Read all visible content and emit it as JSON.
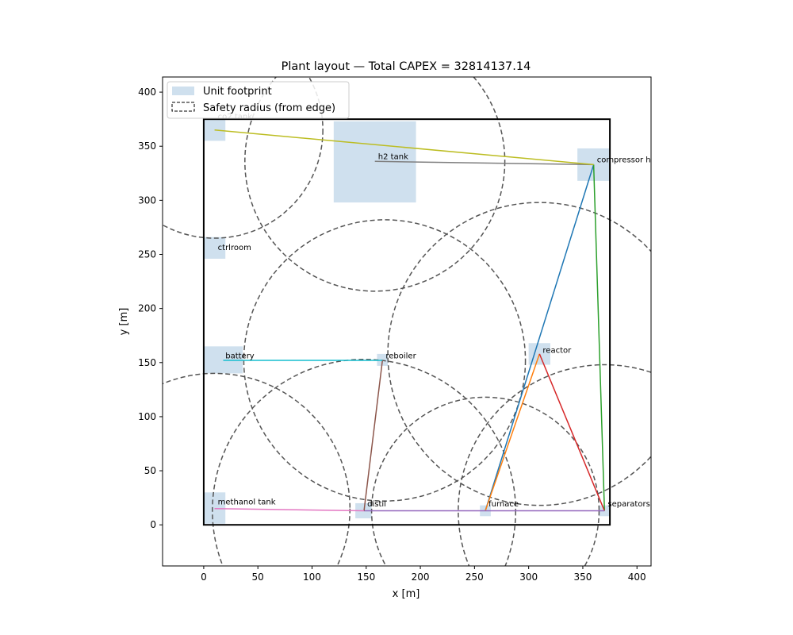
{
  "chart_data": {
    "type": "scatter",
    "title": "Plant layout — Total CAPEX = 32814137.14",
    "xlabel": "x [m]",
    "ylabel": "y [m]",
    "xlim": [
      -38,
      413
    ],
    "ylim": [
      -38,
      414
    ],
    "xticks": [
      0,
      50,
      100,
      150,
      200,
      250,
      300,
      350,
      400
    ],
    "yticks": [
      0,
      50,
      100,
      150,
      200,
      250,
      300,
      350,
      400
    ],
    "plot_boundary": [
      0,
      0,
      375,
      375
    ],
    "legend": {
      "position": "top-left",
      "entries": [
        {
          "label": "Unit footprint",
          "kind": "patch",
          "color": "#cfe0ee"
        },
        {
          "label": "Safety radius (from edge)",
          "kind": "dashed-patch",
          "color": "#000000"
        }
      ]
    },
    "colors": {
      "footprint": "#cfe0ee",
      "safety": "#555555",
      "boundary": "#000000"
    },
    "units": [
      {
        "name": "co2 tank",
        "x0": 0,
        "y0": 355,
        "x1": 20,
        "y1": 375
      },
      {
        "name": "h2 tank",
        "x0": 120,
        "y0": 298,
        "x1": 196,
        "y1": 373
      },
      {
        "name": "compressor house",
        "x0": 345,
        "y0": 318,
        "x1": 375,
        "y1": 348
      },
      {
        "name": "ctrlroom",
        "x0": 0,
        "y0": 246,
        "x1": 20,
        "y1": 266
      },
      {
        "name": "battery",
        "x0": 0,
        "y0": 140,
        "x1": 36,
        "y1": 165
      },
      {
        "name": "reboiler",
        "x0": 160,
        "y0": 147,
        "x1": 170,
        "y1": 158
      },
      {
        "name": "reactor",
        "x0": 300,
        "y0": 148,
        "x1": 320,
        "y1": 168
      },
      {
        "name": "methanol tank",
        "x0": 0,
        "y0": 1,
        "x1": 20,
        "y1": 30
      },
      {
        "name": "distil",
        "x0": 140,
        "y0": 6,
        "x1": 155,
        "y1": 20
      },
      {
        "name": "furnace",
        "x0": 255,
        "y0": 8,
        "x1": 265,
        "y1": 18
      },
      {
        "name": "separators",
        "x0": 365,
        "y0": 8,
        "x1": 375,
        "y1": 18
      }
    ],
    "safety_circles": [
      {
        "cx": 10,
        "cy": 365,
        "r": 100
      },
      {
        "cx": 158,
        "cy": 336,
        "r": 120
      },
      {
        "cx": 310,
        "cy": 158,
        "r": 140
      },
      {
        "cx": 167,
        "cy": 152,
        "r": 130
      },
      {
        "cx": 10,
        "cy": 15,
        "r": 125
      },
      {
        "cx": 148,
        "cy": 13,
        "r": 140
      },
      {
        "cx": 260,
        "cy": 13,
        "r": 105
      },
      {
        "cx": 370,
        "cy": 13,
        "r": 135
      }
    ],
    "connections": [
      {
        "from": "furnace",
        "to": "compressor house",
        "x": [
          260,
          360
        ],
        "y": [
          13,
          333
        ],
        "color": "#1f77b4"
      },
      {
        "from": "furnace",
        "to": "reactor",
        "x": [
          260,
          310
        ],
        "y": [
          13,
          158
        ],
        "color": "#ff7f0e"
      },
      {
        "from": "separators",
        "to": "compressor house",
        "x": [
          370,
          360
        ],
        "y": [
          13,
          333
        ],
        "color": "#2ca02c"
      },
      {
        "from": "reactor",
        "to": "separators",
        "x": [
          310,
          370
        ],
        "y": [
          158,
          13
        ],
        "color": "#d62728"
      },
      {
        "from": "distil",
        "to": "separators",
        "x": [
          148,
          370
        ],
        "y": [
          13,
          13
        ],
        "color": "#9467bd"
      },
      {
        "from": "distil",
        "to": "reboiler",
        "x": [
          148,
          165
        ],
        "y": [
          13,
          152
        ],
        "color": "#8c564b"
      },
      {
        "from": "methanol tank",
        "to": "distil",
        "x": [
          10,
          148
        ],
        "y": [
          15,
          13
        ],
        "color": "#e377c2"
      },
      {
        "from": "h2 tank",
        "to": "compressor house",
        "x": [
          158,
          360
        ],
        "y": [
          336,
          333
        ],
        "color": "#7f7f7f"
      },
      {
        "from": "co2 tank",
        "to": "compressor house",
        "x": [
          10,
          360
        ],
        "y": [
          365,
          333
        ],
        "color": "#bcbd22"
      },
      {
        "from": "battery",
        "to": "reboiler",
        "x": [
          18,
          165
        ],
        "y": [
          152,
          152
        ],
        "color": "#17becf"
      }
    ],
    "labels": [
      {
        "text": "co2 tank",
        "x": 13,
        "y": 375
      },
      {
        "text": "h2 tank",
        "x": 161,
        "y": 338
      },
      {
        "text": "compressor house",
        "x": 363,
        "y": 335
      },
      {
        "text": "ctrlroom",
        "x": 13,
        "y": 254
      },
      {
        "text": "battery",
        "x": 20,
        "y": 154
      },
      {
        "text": "reboiler",
        "x": 168,
        "y": 154
      },
      {
        "text": "reactor",
        "x": 313,
        "y": 159
      },
      {
        "text": "methanol tank",
        "x": 13,
        "y": 19
      },
      {
        "text": "distil",
        "x": 151,
        "y": 17
      },
      {
        "text": "furnace",
        "x": 263,
        "y": 17
      },
      {
        "text": "separators",
        "x": 373,
        "y": 17
      }
    ]
  }
}
